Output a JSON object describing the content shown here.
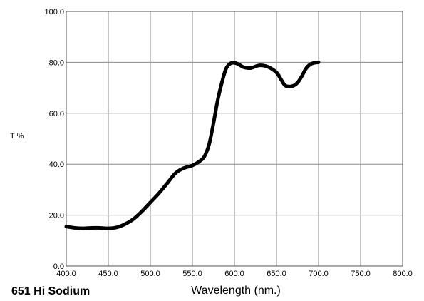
{
  "chart_data": {
    "type": "line",
    "title": "651 Hi Sodium",
    "xlabel": "Wavelength (nm.)",
    "ylabel": "T %",
    "xlim": [
      400,
      800
    ],
    "ylim": [
      0,
      100
    ],
    "grid": true,
    "x_ticks": [
      "400.0",
      "450.0",
      "500.0",
      "550.0",
      "600.0",
      "650.0",
      "700.0",
      "750.0",
      "800.0"
    ],
    "y_ticks": [
      "0.0",
      "20.0",
      "40.0",
      "60.0",
      "80.0",
      "100.0"
    ],
    "series": [
      {
        "color": "#000000",
        "x": [
          400,
          410,
          420,
          430,
          440,
          450,
          460,
          470,
          480,
          490,
          500,
          510,
          520,
          530,
          540,
          550,
          560,
          565,
          570,
          575,
          580,
          585,
          590,
          595,
          600,
          605,
          610,
          615,
          620,
          630,
          640,
          650,
          655,
          660,
          665,
          670,
          675,
          680,
          685,
          690,
          695,
          700
        ],
        "y": [
          15.5,
          15.0,
          14.8,
          15.0,
          15.0,
          14.8,
          15.2,
          16.5,
          18.5,
          21.5,
          25.0,
          28.5,
          32.5,
          36.5,
          38.5,
          39.5,
          41.5,
          43.5,
          48.0,
          56.0,
          65.0,
          72.0,
          77.5,
          79.5,
          79.8,
          79.2,
          78.2,
          77.8,
          77.8,
          78.8,
          78.2,
          76.0,
          73.5,
          71.0,
          70.5,
          70.8,
          72.0,
          74.5,
          77.5,
          79.2,
          79.8,
          80.0
        ]
      }
    ]
  }
}
